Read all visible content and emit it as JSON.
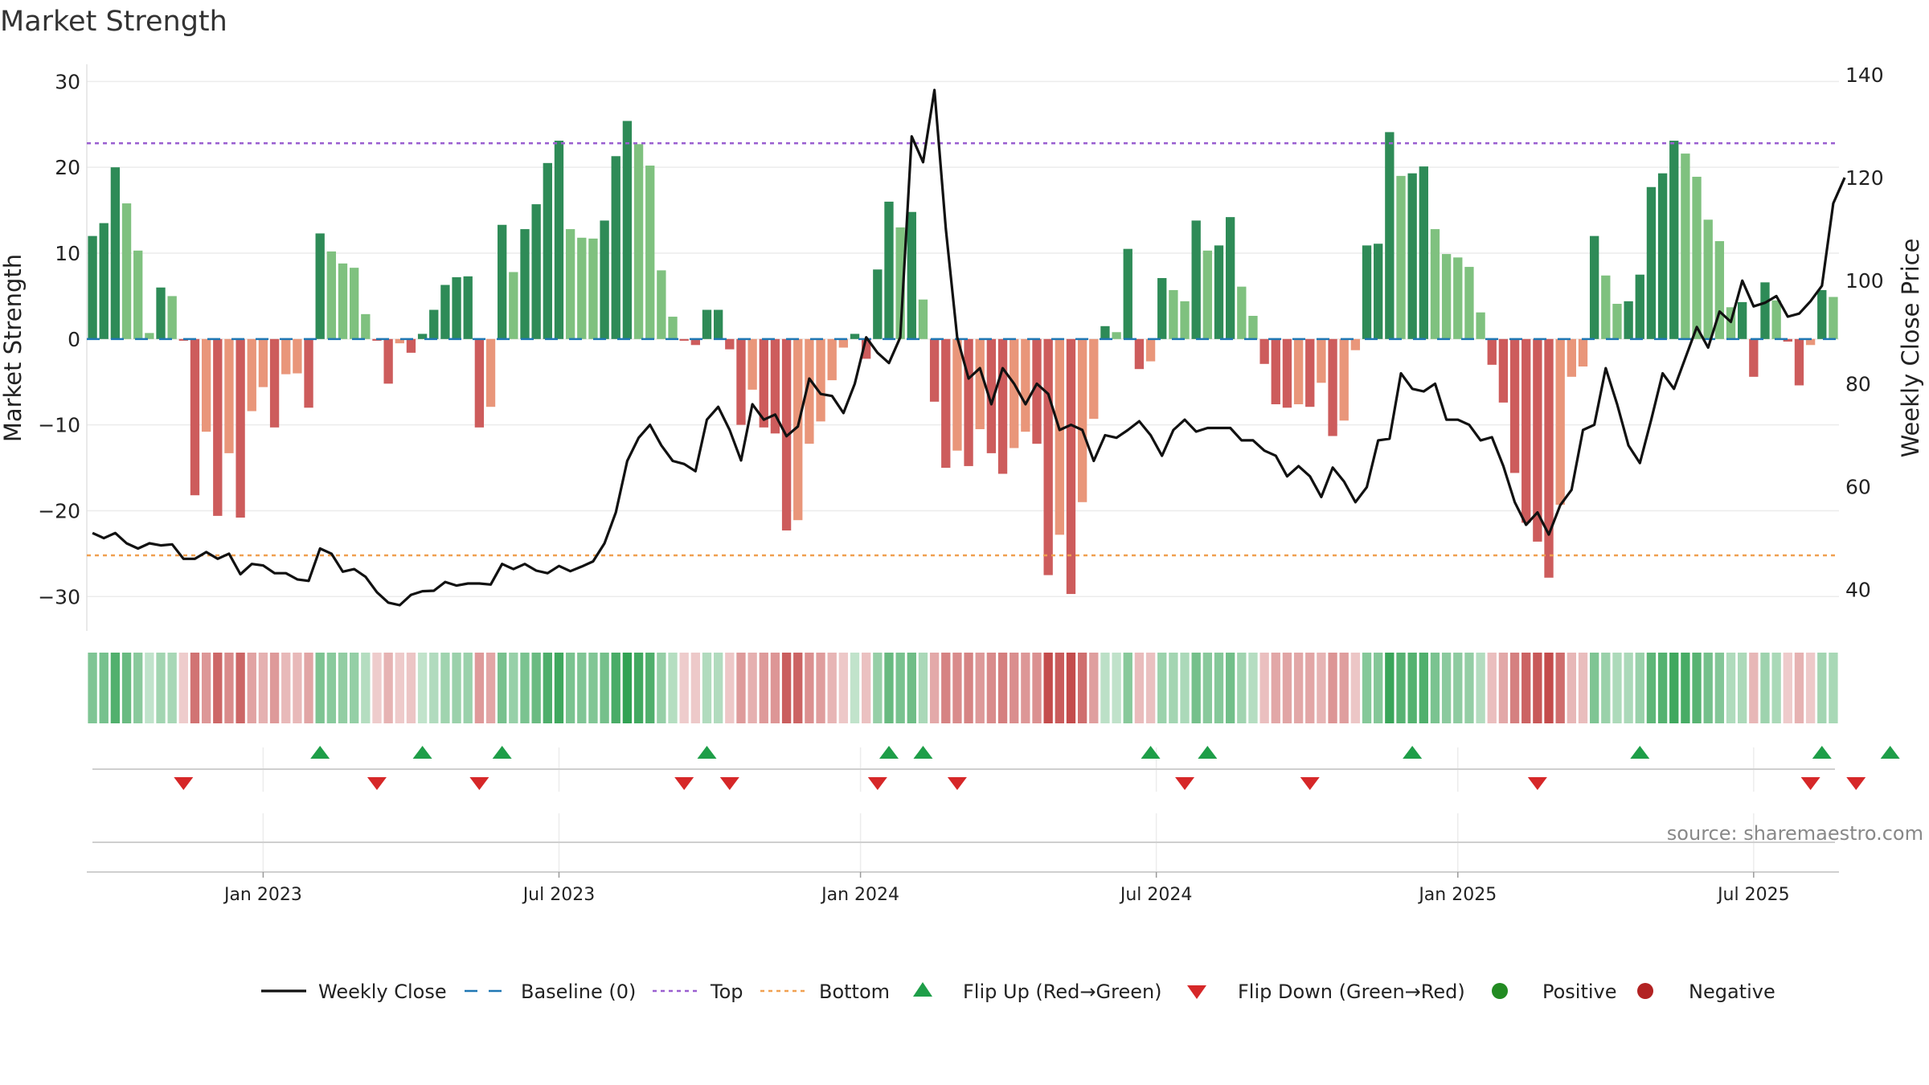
{
  "chart_data": {
    "type": "bar+line",
    "title": "Market Strength",
    "ylabel_left": "Market Strength",
    "ylabel_right": "Weekly Close Price",
    "ylim_left": [
      -34,
      32
    ],
    "ylim_right": [
      32,
      142
    ],
    "yticks_left": [
      30,
      20,
      10,
      0,
      -10,
      -20,
      -30
    ],
    "ytick_labels_left": [
      "30",
      "20",
      "10",
      "0",
      "−10",
      "−20",
      "−30"
    ],
    "yticks_right": [
      140,
      120,
      100,
      80,
      60,
      40
    ],
    "ytick_labels_right": [
      "140",
      "120",
      "100",
      "80",
      "60",
      "40"
    ],
    "top_line": 22.8,
    "bottom_line": -25.2,
    "baseline": 0,
    "date_ticks": [
      {
        "week": 15,
        "label": "Jan 2023"
      },
      {
        "week": 41,
        "label": "Jul 2023"
      },
      {
        "week": 67.5,
        "label": "Jan 2024"
      },
      {
        "week": 93.5,
        "label": "Jul 2024"
      },
      {
        "week": 120,
        "label": "Jan 2025"
      },
      {
        "week": 146,
        "label": "Jul 2025"
      }
    ],
    "market_strength": [
      12,
      13.5,
      20,
      15.8,
      10.3,
      0.7,
      6,
      5,
      -0.2,
      -18.2,
      -10.8,
      -20.6,
      -13.3,
      -20.8,
      -8.4,
      -5.6,
      -10.3,
      -4.1,
      -4,
      -8,
      12.3,
      10.2,
      8.8,
      8.3,
      2.9,
      -0.2,
      -5.2,
      -0.5,
      -1.6,
      0.6,
      3.4,
      6.3,
      7.2,
      7.3,
      -10.3,
      -7.9,
      13.3,
      7.8,
      12.8,
      15.7,
      20.5,
      23.1,
      12.8,
      11.8,
      11.7,
      13.8,
      21.3,
      25.4,
      22.7,
      20.2,
      8,
      2.6,
      -0.2,
      -0.7,
      3.4,
      3.4,
      -1.2,
      -10,
      -5.9,
      -10.3,
      -11,
      -22.3,
      -21.1,
      -12.2,
      -9.6,
      -4.8,
      -1,
      0.6,
      -2.3,
      8.1,
      16,
      13,
      14.8,
      4.6,
      -7.3,
      -15,
      -13,
      -14.8,
      -10.5,
      -13.3,
      -15.7,
      -12.7,
      -10.8,
      -12.2,
      -27.5,
      -22.8,
      -29.7,
      -19,
      -9.3,
      1.5,
      0.8,
      10.5,
      -3.5,
      -2.6,
      7.1,
      5.7,
      4.4,
      13.8,
      10.3,
      10.9,
      14.2,
      6.1,
      2.7,
      -2.9,
      -7.6,
      -8,
      -7.6,
      -7.9,
      -5.1,
      -11.3,
      -9.5,
      -1.3,
      10.9,
      11.1,
      24.1,
      19,
      19.3,
      20.1,
      12.8,
      9.9,
      9.5,
      8.4,
      3.1,
      -3,
      -7.4,
      -15.6,
      -21.4,
      -23.6,
      -27.8,
      -19.3,
      -4.4,
      -3.2,
      12,
      7.4,
      4.1,
      4.4,
      7.5,
      17.7,
      19.3,
      23.1,
      21.6,
      18.9,
      13.9,
      11.4,
      3.7,
      4.3,
      -4.4,
      6.6,
      4.5,
      -0.3,
      -5.4,
      -0.7,
      5.7,
      4.9
    ],
    "weekly_close": [
      51,
      50,
      51,
      49,
      48,
      49,
      48.6,
      48.8,
      46,
      46,
      47.3,
      46,
      47,
      43,
      45,
      44.7,
      43.2,
      43.2,
      42,
      41.7,
      48,
      47,
      43.5,
      44,
      42.5,
      39.5,
      37.5,
      37,
      39,
      39.7,
      39.8,
      41.5,
      40.8,
      41.2,
      41.2,
      41,
      45,
      44,
      45,
      43.7,
      43.2,
      44.6,
      43.6,
      44.5,
      45.5,
      49,
      55,
      65,
      69.5,
      72,
      68,
      65,
      64.4,
      63,
      73,
      75.5,
      71,
      65.1,
      76,
      73,
      74,
      69.8,
      71.7,
      81,
      78,
      77.6,
      74.3,
      80,
      89,
      86,
      84,
      89,
      128,
      123,
      137,
      110,
      89,
      81,
      83,
      76,
      83,
      80,
      76,
      80,
      78,
      71,
      72,
      71,
      65,
      70,
      69.5,
      71,
      72.7,
      70,
      66,
      71,
      73,
      70.7,
      71.4,
      71.4,
      71.4,
      69,
      69,
      67,
      66,
      62,
      64,
      62,
      58,
      63.7,
      61,
      57,
      59.9,
      69,
      69.3,
      82,
      79,
      78.5,
      80,
      73,
      73,
      72,
      69,
      69.6,
      64,
      57,
      52.6,
      55,
      50.7,
      56.4,
      59.4,
      71,
      72,
      83,
      76,
      68,
      64.6,
      73,
      82,
      79,
      85,
      91,
      87,
      94,
      92,
      100,
      95,
      95.7,
      97,
      93,
      93.6,
      96,
      99,
      115,
      120
    ],
    "flip_up_weeks": [
      20,
      29,
      36,
      54,
      70,
      73,
      93,
      98,
      116,
      136,
      152,
      158
    ],
    "flip_down_weeks": [
      8,
      25,
      34,
      52,
      56,
      69,
      76,
      96,
      107,
      127,
      151,
      155
    ],
    "legend": [
      {
        "type": "line",
        "label": "Weekly Close"
      },
      {
        "type": "dash",
        "label": "Baseline (0)"
      },
      {
        "type": "dot-purple",
        "label": "Top"
      },
      {
        "type": "dot-orange",
        "label": "Bottom"
      },
      {
        "type": "tri-up",
        "label": "Flip Up (Red→Green)"
      },
      {
        "type": "tri-down",
        "label": "Flip Down (Green→Red)"
      },
      {
        "type": "circle-green",
        "label": "Positive"
      },
      {
        "type": "circle-red",
        "label": "Negative"
      }
    ]
  },
  "source": "source: sharemaestro.com",
  "colors": {
    "bar_strong_green": "#2e8b57",
    "bar_light_green": "#7fc17f",
    "bar_strong_red": "#cd5c5c",
    "bar_light_red": "#e9967a",
    "top_line": "#9a5fd0",
    "bottom_line": "#f0a050",
    "baseline": "#1f77b4",
    "close_line": "#111111",
    "flip_up": "#1e9e48",
    "flip_down": "#d62728",
    "positive": "#228b22",
    "negative": "#b22222"
  }
}
